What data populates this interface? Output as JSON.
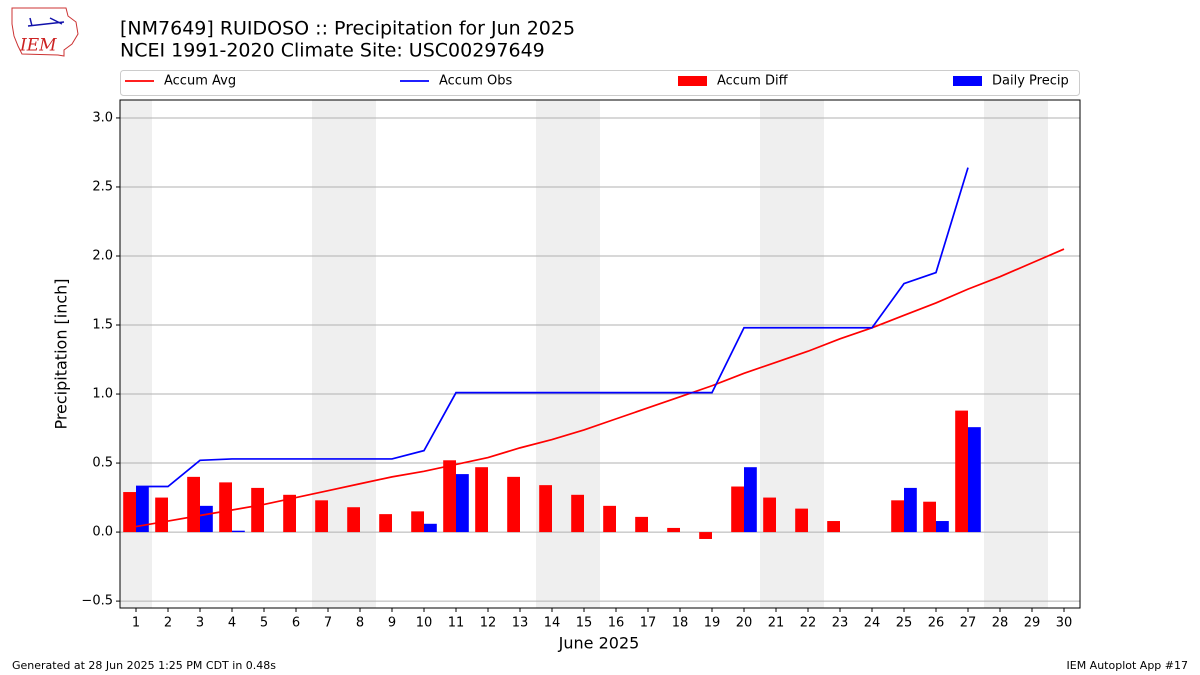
{
  "chart_data": {
    "type": "bar_line",
    "title": "[NM7649] RUIDOSO :: Precipitation for Jun 2025",
    "subtitle": "NCEI 1991-2020 Climate Site: USC00297649",
    "xlabel": "June 2025",
    "ylabel": "Precipitation [inch]",
    "logo_text": "IEM",
    "footer_left": "Generated at 28 Jun 2025 1:25 PM CDT in 0.48s",
    "footer_right": "IEM Autoplot App #17",
    "x": [
      1,
      2,
      3,
      4,
      5,
      6,
      7,
      8,
      9,
      10,
      11,
      12,
      13,
      14,
      15,
      16,
      17,
      18,
      19,
      20,
      21,
      22,
      23,
      24,
      25,
      26,
      27,
      28,
      29,
      30
    ],
    "xlim": [
      0.5,
      30.5
    ],
    "xticks": [
      1,
      2,
      3,
      4,
      5,
      6,
      7,
      8,
      9,
      10,
      11,
      12,
      13,
      14,
      15,
      16,
      17,
      18,
      19,
      20,
      21,
      22,
      23,
      24,
      25,
      26,
      27,
      28,
      29,
      30
    ],
    "ylim": [
      -0.55,
      3.13
    ],
    "yticks": [
      {
        "value": -0.5,
        "label": "−0.5"
      },
      {
        "value": 0,
        "label": "0.0"
      },
      0.5,
      {
        "value": 1,
        "label": "1.0"
      },
      1.5,
      {
        "value": 2,
        "label": "2.0"
      },
      2.5,
      {
        "value": 3,
        "label": "3.0"
      }
    ],
    "grid": true,
    "shaded": [
      [
        0.5,
        1.5
      ],
      [
        6.5,
        8.5
      ],
      [
        13.5,
        15.5
      ],
      [
        20.5,
        22.5
      ],
      [
        27.5,
        29.5
      ]
    ],
    "series": [
      {
        "name": "Accum Avg",
        "kind": "line",
        "color": "#ff0000",
        "values": [
          0.04,
          0.08,
          0.12,
          0.16,
          0.2,
          0.25,
          0.3,
          0.35,
          0.4,
          0.44,
          0.49,
          0.54,
          0.61,
          0.67,
          0.74,
          0.82,
          0.9,
          0.98,
          1.06,
          1.15,
          1.23,
          1.31,
          1.4,
          1.48,
          1.57,
          1.66,
          1.76,
          1.85,
          1.95,
          2.05
        ]
      },
      {
        "name": "Accum Obs",
        "kind": "line",
        "color": "#0000ff",
        "values": [
          0.33,
          0.33,
          0.52,
          0.53,
          0.53,
          0.53,
          0.53,
          0.53,
          0.53,
          0.59,
          1.01,
          1.01,
          1.01,
          1.01,
          1.01,
          1.01,
          1.01,
          1.01,
          1.01,
          1.48,
          1.48,
          1.48,
          1.48,
          1.48,
          1.8,
          1.88,
          2.64,
          null,
          null,
          null
        ]
      },
      {
        "name": "Accum Diff",
        "kind": "bar",
        "color": "#ff0000",
        "values": [
          0.29,
          0.25,
          0.4,
          0.36,
          0.32,
          0.27,
          0.23,
          0.18,
          0.13,
          0.15,
          0.52,
          0.47,
          0.4,
          0.34,
          0.27,
          0.19,
          0.11,
          0.03,
          -0.05,
          0.33,
          0.25,
          0.17,
          0.08,
          0.0,
          0.23,
          0.22,
          0.88,
          null,
          null,
          null
        ]
      },
      {
        "name": "Daily Precip",
        "kind": "bar",
        "color": "#0000ff",
        "values": [
          0.33,
          0,
          0.19,
          0.01,
          0,
          0,
          0,
          0,
          0,
          0.06,
          0.42,
          0,
          0,
          0,
          0,
          0,
          0,
          0,
          0,
          0.47,
          0,
          0,
          0,
          0,
          0.32,
          0.08,
          0.76,
          null,
          null,
          null
        ]
      }
    ]
  }
}
